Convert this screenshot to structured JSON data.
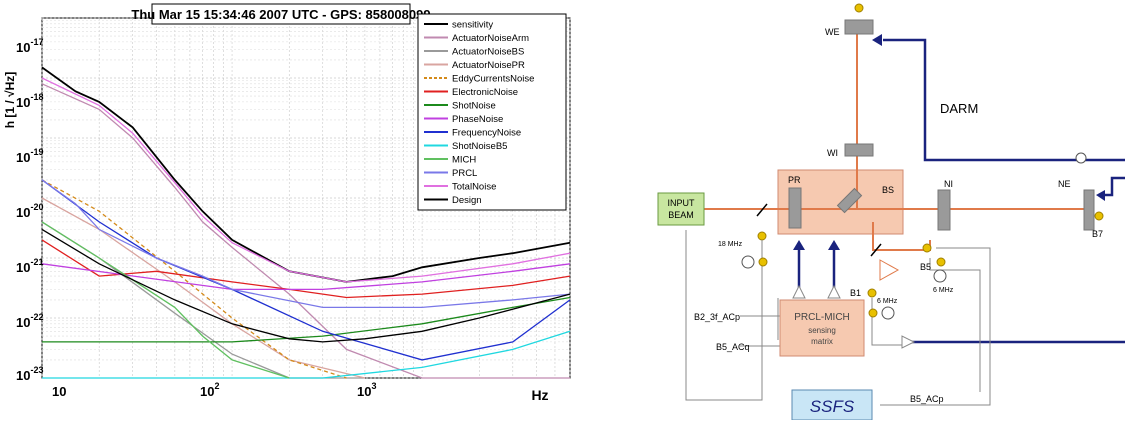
{
  "plot": {
    "title": "Thu Mar 15 15:34:46 2007 UTC - GPS: 858008099",
    "ylabel": "h [1 / √Hz]",
    "xlabel": "Hz",
    "x_ticks": [
      {
        "base": "10",
        "exp": ""
      },
      {
        "base": "10",
        "exp": "2"
      },
      {
        "base": "10",
        "exp": "3"
      }
    ],
    "y_ticks": [
      {
        "base": "10",
        "exp": "-17"
      },
      {
        "base": "10",
        "exp": "-18"
      },
      {
        "base": "10",
        "exp": "-19"
      },
      {
        "base": "10",
        "exp": "-20"
      },
      {
        "base": "10",
        "exp": "-21"
      },
      {
        "base": "10",
        "exp": "-22"
      },
      {
        "base": "10",
        "exp": "-23"
      }
    ],
    "legend": [
      {
        "name": "sensitivity",
        "color": "#000000"
      },
      {
        "name": "ActuatorNoiseArm",
        "color": "#c08ab0"
      },
      {
        "name": "ActuatorNoiseBS",
        "color": "#9a9a9a"
      },
      {
        "name": "ActuatorNoisePR",
        "color": "#d9a5a0"
      },
      {
        "name": "EddyCurrentsNoise",
        "color": "#d48a1a",
        "dashed": true
      },
      {
        "name": "ElectronicNoise",
        "color": "#e02020"
      },
      {
        "name": "ShotNoise",
        "color": "#1c8a1c"
      },
      {
        "name": "PhaseNoise",
        "color": "#c040e0"
      },
      {
        "name": "FrequencyNoise",
        "color": "#2030d0"
      },
      {
        "name": "ShotNoiseB5",
        "color": "#20d8e0"
      },
      {
        "name": "MICH",
        "color": "#60c060"
      },
      {
        "name": "PRCL",
        "color": "#7a78e8"
      },
      {
        "name": "TotalNoise",
        "color": "#e070e0"
      },
      {
        "name": "Design",
        "color": "#000000"
      }
    ]
  },
  "chart_data": {
    "type": "line",
    "title": "Thu Mar 15 15:34:46 2007 UTC - GPS: 858008099",
    "xlabel": "Hz",
    "ylabel": "h [1 / √Hz]",
    "xscale": "log",
    "yscale": "log",
    "xlim": [
      10,
      6000
    ],
    "ylim": [
      1e-23,
      1e-17
    ],
    "grid": true,
    "legend_position": "top-right",
    "series": [
      {
        "name": "sensitivity",
        "color": "#000000",
        "x": [
          10,
          15,
          20,
          30,
          50,
          70,
          100,
          200,
          400,
          700,
          1000,
          2000,
          3000,
          6000
        ],
        "y": [
          1.5e-18,
          6e-19,
          4e-19,
          1.5e-19,
          2e-20,
          6e-21,
          2e-21,
          6e-22,
          4e-22,
          5e-22,
          7e-22,
          1e-21,
          1.2e-21,
          1.8e-21
        ]
      },
      {
        "name": "ActuatorNoiseArm",
        "color": "#c08ab0",
        "x": [
          10,
          20,
          30,
          50,
          70,
          100,
          200,
          400,
          1000,
          6000
        ],
        "y": [
          8e-19,
          3e-19,
          1e-19,
          1.5e-20,
          4e-21,
          1.5e-21,
          2.5e-22,
          3e-23,
          1e-23,
          1e-23
        ]
      },
      {
        "name": "ActuatorNoiseBS",
        "color": "#9a9a9a",
        "x": [
          10,
          20,
          50,
          100,
          200,
          500
        ],
        "y": [
          4e-21,
          1e-21,
          1.2e-22,
          2.5e-23,
          1e-23,
          1e-23
        ]
      },
      {
        "name": "ActuatorNoisePR",
        "color": "#d9a5a0",
        "x": [
          10,
          20,
          50,
          100,
          200,
          500
        ],
        "y": [
          1e-20,
          3e-21,
          4e-22,
          8e-23,
          2e-23,
          1e-23
        ]
      },
      {
        "name": "EddyCurrentsNoise",
        "color": "#d48a1a",
        "x": [
          10,
          20,
          50,
          100,
          200,
          400
        ],
        "y": [
          2e-20,
          6e-21,
          6e-22,
          1e-22,
          2e-23,
          1e-23
        ]
      },
      {
        "name": "ElectronicNoise",
        "color": "#e02020",
        "x": [
          10,
          20,
          40,
          100,
          200,
          400,
          1000,
          3000,
          6000
        ],
        "y": [
          2e-21,
          5e-22,
          6e-22,
          4e-22,
          3e-22,
          2.2e-22,
          2.5e-22,
          3.5e-22,
          5e-22
        ]
      },
      {
        "name": "ShotNoise",
        "color": "#1c8a1c",
        "x": [
          10,
          100,
          300,
          1000,
          3000,
          6000
        ],
        "y": [
          4e-23,
          4e-23,
          5e-23,
          8e-23,
          1.5e-22,
          2.2e-22
        ]
      },
      {
        "name": "PhaseNoise",
        "color": "#c040e0",
        "x": [
          10,
          100,
          300,
          1000,
          3000,
          6000
        ],
        "y": [
          8e-22,
          3e-22,
          3e-22,
          4e-22,
          6e-22,
          8e-22
        ]
      },
      {
        "name": "FrequencyNoise",
        "color": "#2030d0",
        "x": [
          10,
          20,
          40,
          100,
          300,
          1000,
          3000,
          6000
        ],
        "y": [
          2e-20,
          4e-21,
          1e-21,
          3e-22,
          6e-23,
          2e-23,
          4e-23,
          2e-22
        ]
      },
      {
        "name": "ShotNoiseB5",
        "color": "#20d8e0",
        "x": [
          10,
          100,
          300,
          1000,
          3000,
          6000
        ],
        "y": [
          1e-23,
          1e-23,
          1e-23,
          1.5e-23,
          3e-23,
          6e-23
        ]
      },
      {
        "name": "MICH",
        "color": "#60c060",
        "x": [
          10,
          20,
          50,
          70,
          100,
          200
        ],
        "y": [
          4e-21,
          1e-21,
          1.5e-22,
          5e-23,
          2e-23,
          1e-23
        ]
      },
      {
        "name": "PRCL",
        "color": "#7a78e8",
        "x": [
          10,
          15,
          20,
          40,
          70,
          100,
          300,
          1000,
          3000,
          6000
        ],
        "y": [
          2e-20,
          8e-21,
          3e-21,
          1e-21,
          5e-22,
          3e-22,
          1.5e-22,
          1.5e-22,
          2e-22,
          2.5e-22
        ]
      },
      {
        "name": "TotalNoise",
        "color": "#e070e0",
        "x": [
          10,
          20,
          30,
          50,
          70,
          100,
          200,
          400,
          1000,
          3000,
          6000
        ],
        "y": [
          1e-18,
          3.5e-19,
          1.2e-19,
          1.8e-20,
          5e-21,
          1.8e-21,
          6e-22,
          4e-22,
          5e-22,
          8e-22,
          1.2e-21
        ]
      },
      {
        "name": "Design",
        "color": "#000000",
        "x": [
          10,
          20,
          50,
          100,
          200,
          300,
          500,
          1000,
          2000,
          6000
        ],
        "y": [
          3e-21,
          8e-22,
          2e-22,
          8e-23,
          4.5e-23,
          4e-23,
          4.5e-23,
          6e-23,
          1e-22,
          2.5e-22
        ]
      }
    ]
  },
  "diagram": {
    "labels": {
      "we": "WE",
      "wi": "WI",
      "ni": "NI",
      "ne": "NE",
      "pr": "PR",
      "bs": "BS",
      "darm": "DARM",
      "input_beam_1": "INPUT",
      "input_beam_2": "BEAM",
      "mhz18": "18 MHz",
      "mhz6a": "6 MHz",
      "mhz6b": "6 MHz",
      "b5": "B5",
      "b1": "B1",
      "b7": "B7",
      "b2_3f": "B2_3f_ACp",
      "b5_acq": "B5_ACq",
      "b5_acp": "B5_ACp",
      "matrix_1": "PRCL-MICH",
      "matrix_2": "sensing",
      "matrix_3": "matrix",
      "ssfs": "SSFS"
    },
    "colors": {
      "beam": "#e07a4a",
      "control": "#1a237e",
      "box_fill": "#f6c9b0",
      "input_fill": "#c8e6a0",
      "ssfs_fill": "#c9e6f6",
      "mirror": "#9a9a9a",
      "photodiode": "#e8c000"
    }
  }
}
